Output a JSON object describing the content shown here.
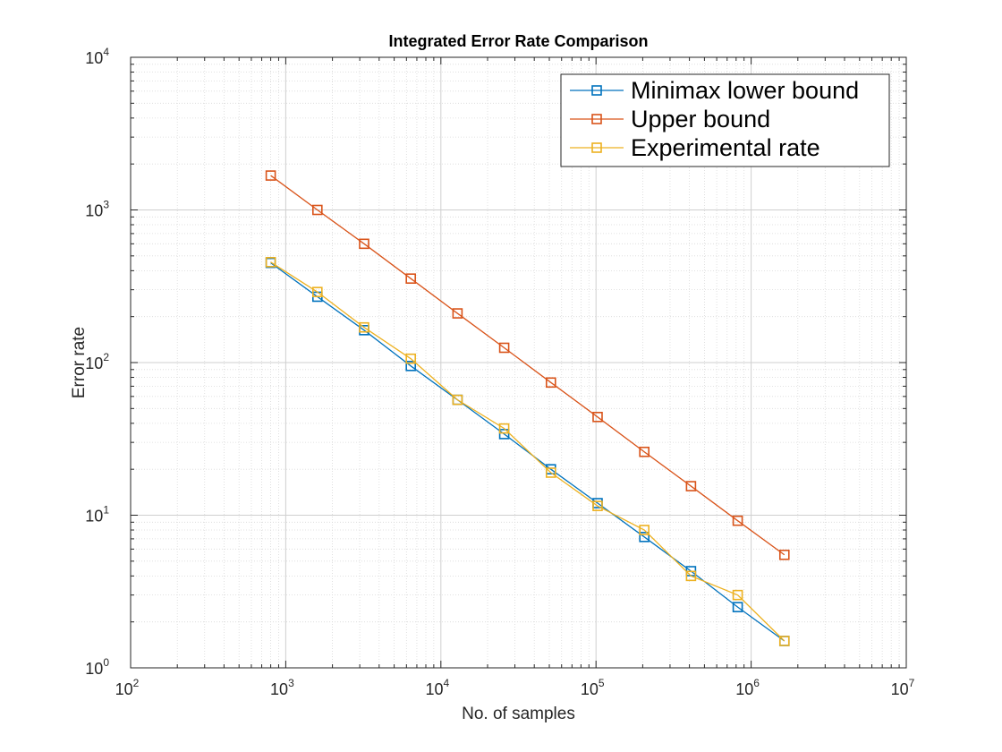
{
  "chart_data": {
    "type": "line",
    "title": "Integrated Error Rate Comparison",
    "xlabel": "No. of samples",
    "ylabel": "Error rate",
    "xscale": "log",
    "yscale": "log",
    "xlim": [
      100,
      10000000
    ],
    "ylim": [
      1,
      10000
    ],
    "grid": true,
    "minor_grid": true,
    "legend_position": "top-right",
    "x_ticks": [
      {
        "base": "10",
        "exp": "2"
      },
      {
        "base": "10",
        "exp": "3"
      },
      {
        "base": "10",
        "exp": "4"
      },
      {
        "base": "10",
        "exp": "5"
      },
      {
        "base": "10",
        "exp": "6"
      },
      {
        "base": "10",
        "exp": "7"
      }
    ],
    "y_ticks": [
      {
        "base": "10",
        "exp": "0"
      },
      {
        "base": "10",
        "exp": "1"
      },
      {
        "base": "10",
        "exp": "2"
      },
      {
        "base": "10",
        "exp": "3"
      },
      {
        "base": "10",
        "exp": "4"
      }
    ],
    "x": [
      800,
      1600,
      3200,
      6400,
      12800,
      25600,
      51200,
      102400,
      204800,
      409600,
      819200,
      1638400
    ],
    "series": [
      {
        "name": "Minimax lower bound",
        "color": "#0072bd",
        "values": [
          450,
          270,
          163,
          95,
          57,
          34,
          20,
          12,
          7.2,
          4.3,
          2.5,
          1.5
        ]
      },
      {
        "name": "Upper bound",
        "color": "#d95319",
        "values": [
          1680,
          1000,
          600,
          355,
          210,
          125,
          74,
          44,
          26,
          15.5,
          9.2,
          5.5
        ]
      },
      {
        "name": "Experimental rate",
        "color": "#edb120",
        "values": [
          455,
          290,
          170,
          106,
          57,
          37,
          19,
          11.5,
          8,
          4,
          3,
          1.5
        ]
      }
    ]
  }
}
